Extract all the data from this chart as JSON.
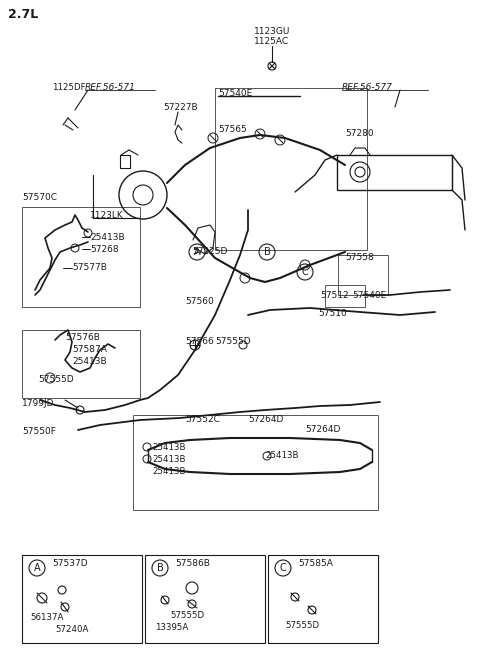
{
  "bg_color": "#ffffff",
  "lc": "#1a1a1a",
  "tc": "#1a1a1a",
  "fig_w": 4.8,
  "fig_h": 6.55,
  "dpi": 100,
  "labels": {
    "title": "2.7L",
    "p1123GU": "1123GU",
    "p1125AC": "1125AC",
    "p1125DF": "1125DF",
    "ref1": "REF.56-571",
    "ref2": "REF.56-577",
    "p57227B": "57227B",
    "p57540E_t": "57540E",
    "p57280": "57280",
    "p57565": "57565",
    "p57570C": "57570C",
    "p1123LK": "1123LK",
    "p25413B_a": "25413B",
    "p57268": "57268",
    "p57577B": "57577B",
    "p57225D": "57225D",
    "p57560": "57560",
    "p57558": "57558",
    "p57512": "57512",
    "p57540E_r": "57540E",
    "p57510": "57510",
    "p57576B": "57576B",
    "p57587A": "57587A",
    "p25413B_b": "25413B",
    "p57555D_a": "57555D",
    "p57566": "57566",
    "p57555D_b": "57555D",
    "p1799JD": "1799JD",
    "p57550F": "57550F",
    "p57552C": "57552C",
    "p57264D_a": "57264D",
    "p57264D_b": "57264D",
    "p25413B_c": "25413B",
    "p25413B_d": "25413B",
    "p25413B_e": "25413B",
    "p25413B_f": "25413B",
    "cA": "A",
    "cB": "B",
    "cC": "C",
    "ba_t": "57537D",
    "ba_l1": "56137A",
    "ba_l2": "57240A",
    "bb_t": "57586B",
    "bb_l1": "57555D",
    "bb_l2": "13395A",
    "bc_t": "57585A",
    "bc_l1": "57555D"
  }
}
